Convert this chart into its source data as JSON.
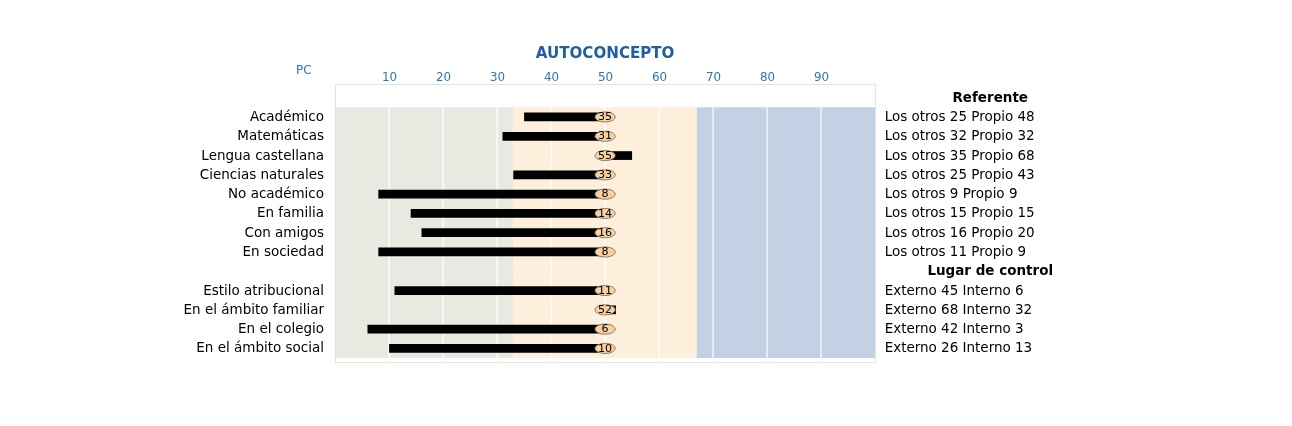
{
  "chart_data": {
    "type": "bar",
    "orientation": "horizontal",
    "title": "AUTOCONCEPTO",
    "xlabel": "PC",
    "categories": [
      "Académico",
      "Matemáticas",
      "Lengua castellana",
      "Ciencias naturales",
      "No académico",
      "En familia",
      "Con amigos",
      "En sociedad",
      null,
      "Estilo atribucional",
      "En el ámbito familiar",
      "En el colegio",
      "En el ámbito social"
    ],
    "base": [
      50,
      50,
      50,
      50,
      50,
      50,
      50,
      50,
      null,
      50,
      50,
      50,
      50
    ],
    "values": [
      -15,
      -19,
      5,
      -17,
      -42,
      -36,
      -34,
      -42,
      null,
      -39,
      2,
      -44,
      -40
    ],
    "value_labels": [
      "35",
      "31",
      "55",
      "33",
      "8",
      "14",
      "16",
      "8",
      null,
      "11",
      "52",
      "6",
      "10"
    ],
    "color": "#000000",
    "xlim": [
      0,
      100
    ],
    "xticks": [
      10,
      20,
      30,
      40,
      50,
      60,
      70,
      80,
      90
    ],
    "grid": "x",
    "bands": [
      {
        "axis": "x",
        "from": 0,
        "to": 33,
        "color": "#e4e3db"
      },
      {
        "axis": "x",
        "from": 33,
        "to": 67,
        "color": "#fdebd3"
      },
      {
        "axis": "x",
        "from": 67,
        "to": 100,
        "color": "#b4c6df"
      }
    ],
    "annotations": [
      "Referente",
      "Los otros 25 Propio 48",
      "Los otros 32 Propio 32",
      "Los otros 35 Propio 68",
      "Los otros 25 Propio 43",
      "Los otros 9 Propio 9",
      "Los otros 15 Propio 15",
      "Los otros 16 Propio 20",
      "Los otros 11 Propio 9",
      "Lugar de control",
      "Externo 45 Interno 6",
      "Externo 68 Interno 32",
      "Externo 42 Interno 3",
      "Externo 26 Interno 13"
    ]
  }
}
